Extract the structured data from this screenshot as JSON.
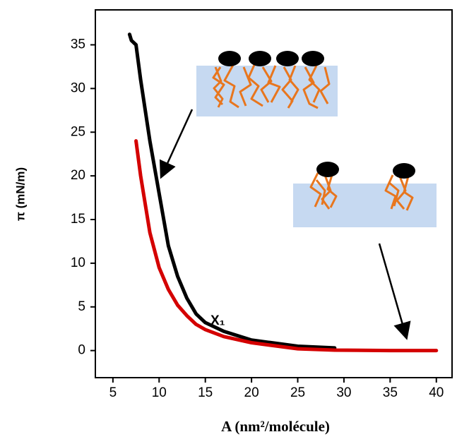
{
  "chart_data": {
    "type": "line",
    "xlabel": "A (nm²/molécule)",
    "ylabel": "π (mN/m)",
    "annotations": [
      "X₁"
    ],
    "x": [
      6.8,
      7,
      7.5,
      8,
      9,
      10,
      11,
      12,
      13,
      14,
      15,
      17,
      20,
      25,
      29,
      35,
      40
    ],
    "series": [
      {
        "color": "#000000",
        "values": [
          36.2,
          35.5,
          35,
          31,
          24,
          18,
          12,
          8.5,
          6,
          4.2,
          3.2,
          2.2,
          1.2,
          0.5,
          0.3,
          null,
          null
        ]
      },
      {
        "color": "#d40000",
        "values": [
          null,
          null,
          24,
          20,
          13.5,
          9.5,
          7,
          5.2,
          4,
          3,
          2.4,
          1.6,
          0.9,
          0.2,
          0.05,
          0,
          0
        ]
      }
    ],
    "xlim": [
      3.1,
      41.7
    ],
    "xticks": [
      5,
      10,
      15,
      20,
      25,
      30,
      35,
      40
    ],
    "ylim": [
      -3.1,
      39
    ],
    "yticks": [
      0,
      5,
      10,
      15,
      20,
      25,
      30,
      35
    ]
  }
}
